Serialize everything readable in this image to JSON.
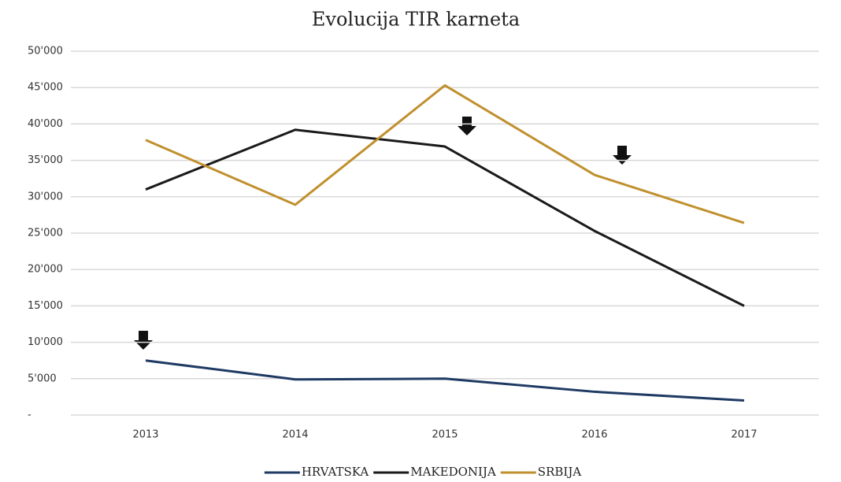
{
  "chart_data": {
    "type": "line",
    "title": "Evolucija TIR karneta",
    "categories": [
      "2013",
      "2014",
      "2015",
      "2016",
      "2017"
    ],
    "series": [
      {
        "name": "HRVATSKA",
        "color": "#1f3a63",
        "values": [
          7500,
          4900,
          5000,
          3200,
          2000
        ]
      },
      {
        "name": "MAKEDONIJA",
        "color": "#1a1a1a",
        "values": [
          31000,
          39200,
          36900,
          25300,
          15000
        ]
      },
      {
        "name": "SRBIJA",
        "color": "#c0902e",
        "values": [
          37800,
          28900,
          45300,
          33000,
          26400
        ]
      }
    ],
    "ylim": [
      0,
      50000
    ],
    "yticks": [
      {
        "value": 0,
        "label": "-"
      },
      {
        "value": 5000,
        "label": "5'000"
      },
      {
        "value": 10000,
        "label": "10'000"
      },
      {
        "value": 15000,
        "label": "15'000"
      },
      {
        "value": 20000,
        "label": "20'000"
      },
      {
        "value": 25000,
        "label": "25'000"
      },
      {
        "value": 30000,
        "label": "30'000"
      },
      {
        "value": 35000,
        "label": "35'000"
      },
      {
        "value": 40000,
        "label": "40'000"
      },
      {
        "value": 45000,
        "label": "45'000"
      },
      {
        "value": 50000,
        "label": "50'000"
      }
    ],
    "grid": true
  }
}
